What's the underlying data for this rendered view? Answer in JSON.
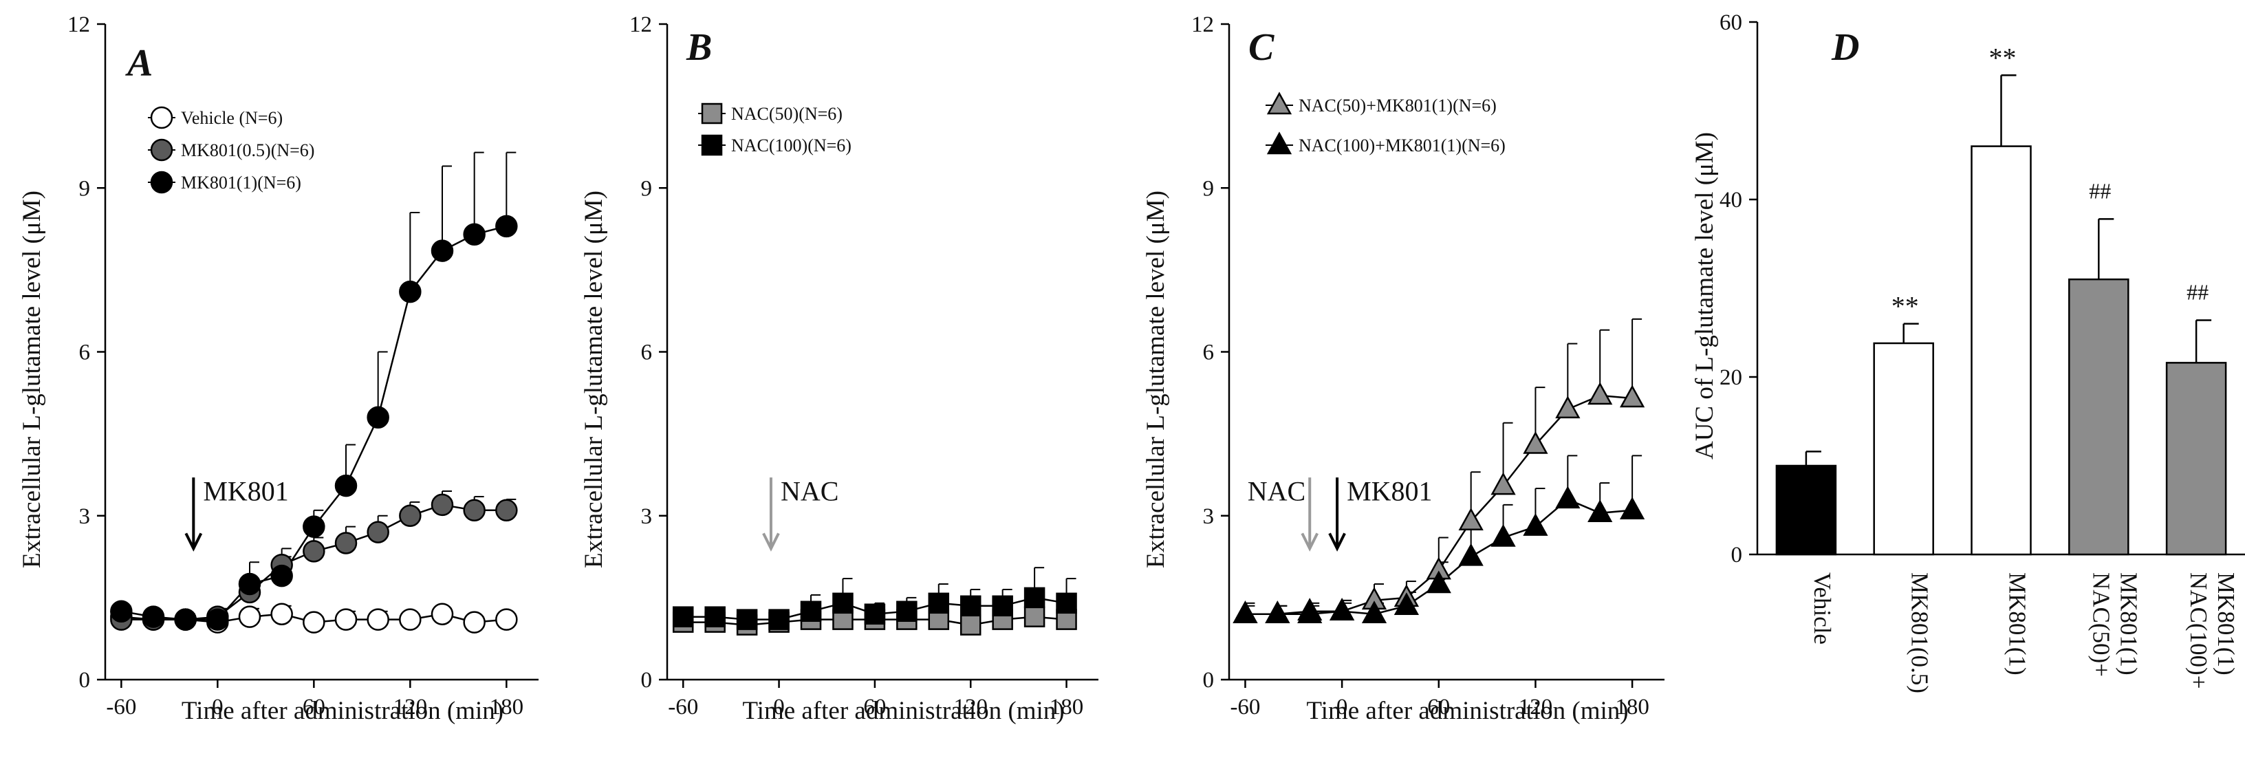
{
  "colors": {
    "black": "#000000",
    "gray": "#8c8c8c",
    "dark_gray": "#5a5a5a",
    "white": "#ffffff",
    "arrow_gray": "#9a9a9a"
  },
  "chart_data": [
    {
      "type": "line",
      "panel": "A",
      "ylabel": "Extracellular L-glutamate level (μM)",
      "xlabel": "Time after administration (min)",
      "xlim": [
        -70,
        200
      ],
      "ylim": [
        0,
        12
      ],
      "x_ticks": [
        -60,
        0,
        60,
        120,
        180
      ],
      "y_ticks": [
        0,
        3,
        6,
        9,
        12
      ],
      "x": [
        -60,
        -40,
        -20,
        0,
        20,
        40,
        60,
        80,
        100,
        120,
        140,
        160,
        180
      ],
      "series": [
        {
          "name": "Vehicle (N=6)",
          "marker": "circle",
          "fill": "white",
          "values": [
            1.15,
            1.1,
            1.1,
            1.05,
            1.15,
            1.2,
            1.05,
            1.1,
            1.1,
            1.1,
            1.2,
            1.05,
            1.1
          ],
          "errors": [
            0.1,
            0.1,
            0.1,
            0.1,
            0.15,
            0.15,
            0.1,
            0.15,
            0.15,
            0.1,
            0.1,
            0.1,
            0.1
          ]
        },
        {
          "name": "MK801(0.5)(N=6)",
          "marker": "circle",
          "fill": "dark_gray",
          "values": [
            1.1,
            1.1,
            1.1,
            1.15,
            1.6,
            2.1,
            2.35,
            2.5,
            2.7,
            3.0,
            3.2,
            3.1,
            3.1
          ],
          "errors": [
            0.1,
            0.1,
            0.1,
            0.15,
            0.25,
            0.3,
            0.25,
            0.3,
            0.3,
            0.25,
            0.25,
            0.25,
            0.2
          ]
        },
        {
          "name": "MK801(1)(N=6)",
          "marker": "circle",
          "fill": "black",
          "values": [
            1.25,
            1.15,
            1.1,
            1.1,
            1.75,
            1.9,
            2.8,
            3.55,
            4.8,
            7.1,
            7.85,
            8.15,
            8.3
          ],
          "errors": [
            0.1,
            0.1,
            0.1,
            0.15,
            0.4,
            0.35,
            0.3,
            0.75,
            1.2,
            1.45,
            1.55,
            1.5,
            1.35
          ]
        }
      ],
      "arrows": [
        {
          "label": "MK801",
          "x": -15,
          "color": "black"
        }
      ]
    },
    {
      "type": "line",
      "panel": "B",
      "ylabel": "Extracellular L-glutamate level (μM)",
      "xlabel": "Time after administration (min)",
      "xlim": [
        -70,
        200
      ],
      "ylim": [
        0,
        12
      ],
      "x_ticks": [
        -60,
        0,
        60,
        120,
        180
      ],
      "y_ticks": [
        0,
        3,
        6,
        9,
        12
      ],
      "x": [
        -60,
        -40,
        -20,
        0,
        20,
        40,
        60,
        80,
        100,
        120,
        140,
        160,
        180
      ],
      "series": [
        {
          "name": "NAC(50)(N=6)",
          "marker": "square",
          "fill": "gray",
          "values": [
            1.05,
            1.05,
            1.0,
            1.05,
            1.1,
            1.1,
            1.1,
            1.1,
            1.1,
            1.0,
            1.1,
            1.15,
            1.1
          ],
          "errors": [
            0.1,
            0.1,
            0.15,
            0.1,
            0.2,
            0.25,
            0.2,
            0.2,
            0.25,
            0.3,
            0.3,
            0.3,
            0.3
          ]
        },
        {
          "name": "NAC(100)(N=6)",
          "marker": "square",
          "fill": "black",
          "values": [
            1.15,
            1.15,
            1.1,
            1.1,
            1.25,
            1.4,
            1.2,
            1.25,
            1.4,
            1.35,
            1.35,
            1.5,
            1.4
          ],
          "errors": [
            0.1,
            0.1,
            0.15,
            0.15,
            0.3,
            0.45,
            0.2,
            0.25,
            0.35,
            0.3,
            0.3,
            0.55,
            0.45
          ]
        }
      ],
      "arrows": [
        {
          "label": "NAC",
          "x": -5,
          "color": "gray"
        }
      ]
    },
    {
      "type": "line",
      "panel": "C",
      "ylabel": "Extracellular L-glutamate level (μM)",
      "xlabel": "Time after administration (min)",
      "xlim": [
        -70,
        200
      ],
      "ylim": [
        0,
        12
      ],
      "x_ticks": [
        -60,
        0,
        60,
        120,
        180
      ],
      "y_ticks": [
        0,
        3,
        6,
        9,
        12
      ],
      "x": [
        -60,
        -40,
        -20,
        0,
        20,
        40,
        60,
        80,
        100,
        120,
        140,
        160,
        180
      ],
      "series": [
        {
          "name": "NAC(50)+MK801(1)(N=6)",
          "marker": "triangle",
          "fill": "gray",
          "values": [
            1.2,
            1.2,
            1.25,
            1.25,
            1.45,
            1.5,
            2.0,
            2.9,
            3.55,
            4.3,
            4.95,
            5.2,
            5.15
          ],
          "errors": [
            0.2,
            0.15,
            0.15,
            0.2,
            0.3,
            0.3,
            0.6,
            0.9,
            1.15,
            1.05,
            1.2,
            1.2,
            1.45
          ]
        },
        {
          "name": "NAC(100)+MK801(1)(N=6)",
          "marker": "triangle",
          "fill": "black",
          "values": [
            1.2,
            1.2,
            1.2,
            1.25,
            1.2,
            1.35,
            1.75,
            2.25,
            2.6,
            2.8,
            3.3,
            3.05,
            3.1
          ],
          "errors": [
            0.15,
            0.15,
            0.15,
            0.15,
            0.2,
            0.25,
            0.4,
            0.5,
            0.6,
            0.7,
            0.8,
            0.55,
            1.0
          ]
        }
      ],
      "arrows": [
        {
          "label": "NAC",
          "x": -20,
          "color": "gray"
        },
        {
          "label": "MK801",
          "x": -3,
          "color": "black"
        }
      ]
    },
    {
      "type": "bar",
      "panel": "D",
      "ylabel": "AUC of L-glutamate level (μM)",
      "ylim": [
        0,
        60
      ],
      "y_ticks": [
        0,
        20,
        40,
        60
      ],
      "categories": [
        "Vehicle",
        "MK801(0.5)",
        "MK801(1)",
        "NAC(50)+MK801(1)",
        "NAC(100)+MK801(1)"
      ],
      "category_lines": [
        [
          "Vehicle"
        ],
        [
          "MK801(0.5)"
        ],
        [
          "MK801(1)"
        ],
        [
          "NAC(50)+",
          "MK801(1)"
        ],
        [
          "NAC(100)+",
          "MK801(1)"
        ]
      ],
      "values": [
        10.0,
        23.8,
        46.0,
        31.0,
        21.6
      ],
      "errors": [
        1.6,
        2.2,
        8.0,
        6.8,
        4.8
      ],
      "fills": [
        "black",
        "white",
        "white",
        "gray",
        "gray"
      ],
      "annotations": [
        "",
        "**",
        "**",
        "##",
        "##"
      ]
    }
  ]
}
